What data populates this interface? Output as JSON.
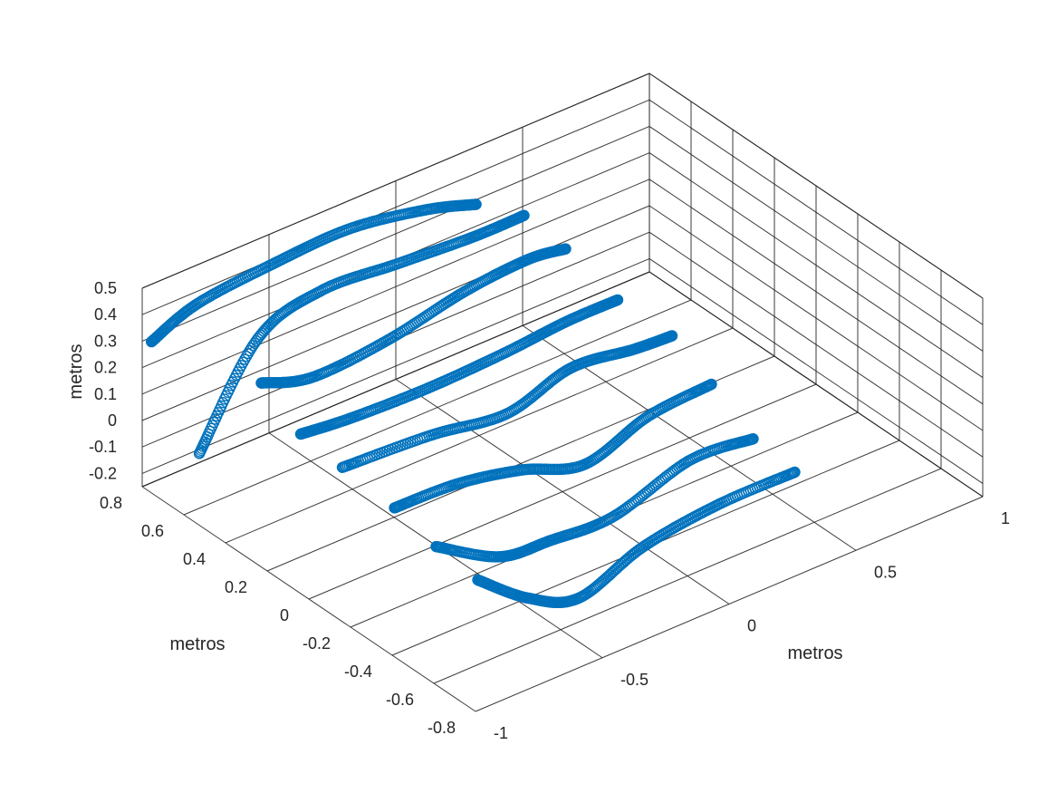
{
  "chart_data": {
    "type": "scatter",
    "xlabel": "metros",
    "ylabel": "metros",
    "zlabel": "metros",
    "xlim": [
      -1,
      1
    ],
    "ylim": [
      -0.8,
      0.8
    ],
    "zlim": [
      -0.25,
      0.5
    ],
    "x_ticks": [
      "-1",
      "-0.5",
      "0",
      "0.5",
      "1"
    ],
    "y_ticks": [
      "-0.8",
      "-0.6",
      "-0.4",
      "-0.2",
      "0",
      "0.2",
      "0.4",
      "0.6",
      "0.8"
    ],
    "z_ticks": [
      "-0.2",
      "-0.1",
      "0",
      "0.1",
      "0.2",
      "0.3",
      "0.4",
      "0.5"
    ],
    "grid": true,
    "marker": "circle",
    "color": "#0072bd",
    "series": [
      {
        "points": [
          [
            -0.98,
            0.78,
            0.3
          ],
          [
            -0.8,
            0.78,
            0.37
          ],
          [
            -0.5,
            0.78,
            0.4
          ],
          [
            -0.2,
            0.78,
            0.41
          ],
          [
            0.1,
            0.78,
            0.36
          ],
          [
            0.3,
            0.78,
            0.3
          ]
        ]
      },
      {
        "points": [
          [
            -0.98,
            0.55,
            0.0
          ],
          [
            -0.75,
            0.55,
            0.34
          ],
          [
            -0.5,
            0.55,
            0.42
          ],
          [
            -0.2,
            0.55,
            0.4
          ],
          [
            0.1,
            0.55,
            0.38
          ],
          [
            0.3,
            0.55,
            0.38
          ]
        ]
      },
      {
        "points": [
          [
            -0.9,
            0.35,
            0.34
          ],
          [
            -0.7,
            0.35,
            0.28
          ],
          [
            -0.4,
            0.35,
            0.3
          ],
          [
            -0.1,
            0.35,
            0.36
          ],
          [
            0.15,
            0.35,
            0.38
          ],
          [
            0.3,
            0.35,
            0.36
          ]
        ]
      },
      {
        "points": [
          [
            -0.95,
            0.1,
            0.3
          ],
          [
            -0.75,
            0.1,
            0.28
          ],
          [
            -0.45,
            0.1,
            0.27
          ],
          [
            -0.15,
            0.1,
            0.28
          ],
          [
            0.1,
            0.1,
            0.3
          ],
          [
            0.3,
            0.1,
            0.3
          ]
        ]
      },
      {
        "points": [
          [
            -0.95,
            -0.1,
            0.28
          ],
          [
            -0.6,
            -0.1,
            0.26
          ],
          [
            -0.3,
            -0.1,
            0.22
          ],
          [
            -0.05,
            -0.1,
            0.29
          ],
          [
            0.2,
            -0.1,
            0.26
          ],
          [
            0.35,
            -0.1,
            0.25
          ]
        ]
      },
      {
        "points": [
          [
            -0.95,
            -0.35,
            0.26
          ],
          [
            -0.7,
            -0.35,
            0.25
          ],
          [
            -0.45,
            -0.35,
            0.2
          ],
          [
            -0.2,
            -0.35,
            0.12
          ],
          [
            0.05,
            -0.35,
            0.2
          ],
          [
            0.3,
            -0.35,
            0.22
          ]
        ]
      },
      {
        "points": [
          [
            -0.95,
            -0.55,
            0.22
          ],
          [
            -0.7,
            -0.55,
            0.08
          ],
          [
            -0.5,
            -0.55,
            0.06
          ],
          [
            -0.25,
            -0.55,
            0.05
          ],
          [
            0.05,
            -0.55,
            0.14
          ],
          [
            0.3,
            -0.55,
            0.12
          ]
        ]
      },
      {
        "points": [
          [
            -0.95,
            -0.75,
            0.2
          ],
          [
            -0.75,
            -0.75,
            0.05
          ],
          [
            -0.55,
            -0.75,
            -0.03
          ],
          [
            -0.3,
            -0.75,
            0.06
          ],
          [
            0.0,
            -0.75,
            0.1
          ],
          [
            0.3,
            -0.75,
            0.1
          ]
        ]
      }
    ]
  }
}
